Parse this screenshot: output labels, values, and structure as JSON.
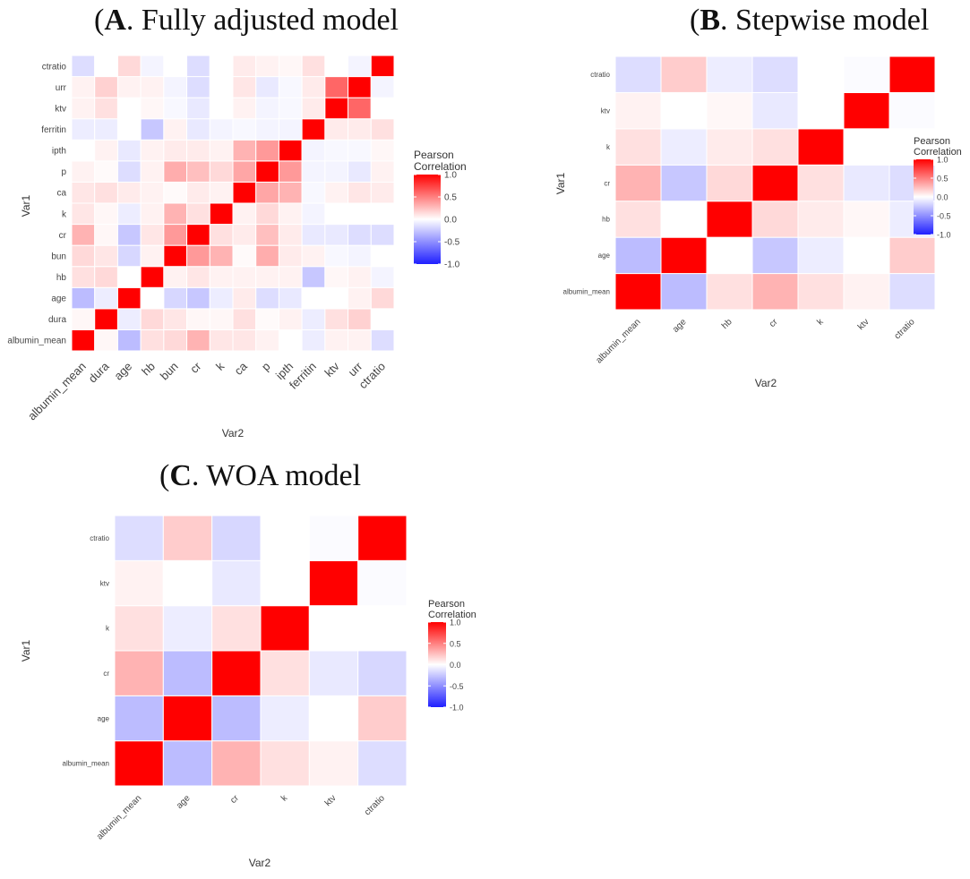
{
  "panels": {
    "A": {
      "letter": "A",
      "title": ". Fully adjusted model"
    },
    "B": {
      "letter": "B",
      "title": ". Stepwise model"
    },
    "C": {
      "letter": "C",
      "title": ". WOA model"
    }
  },
  "colors": {
    "low": "#1f1fff",
    "mid": "#ffffff",
    "high": "#ff0000",
    "border": "#ffffff",
    "panel_bg": "#ffffff"
  },
  "chart_data": [
    {
      "id": "A",
      "type": "heatmap",
      "title": "(A). Fully adjusted model",
      "xlabel": "Var2",
      "ylabel": "Var1",
      "legend": {
        "title_line1": "Pearson",
        "title_line2": "Correlation",
        "position": "right",
        "ticks": [
          "1.0",
          "0.5",
          "0.0",
          "-0.5",
          "-1.0"
        ],
        "range": [
          -1,
          1
        ]
      },
      "x": [
        "albumin_mean",
        "dura",
        "age",
        "hb",
        "bun",
        "cr",
        "k",
        "ca",
        "p",
        "ipth",
        "ferritin",
        "ktv",
        "urr",
        "ctratio"
      ],
      "y": [
        "albumin_mean",
        "dura",
        "age",
        "hb",
        "bun",
        "cr",
        "k",
        "ca",
        "p",
        "ipth",
        "ferritin",
        "ktv",
        "urr",
        "ctratio"
      ],
      "matrix": [
        [
          1.0,
          0.03,
          -0.3,
          0.12,
          0.15,
          0.3,
          0.1,
          0.1,
          0.05,
          0.0,
          -0.08,
          0.05,
          0.05,
          -0.15
        ],
        [
          0.03,
          1.0,
          -0.08,
          0.15,
          0.1,
          0.03,
          0.03,
          0.12,
          0.02,
          0.05,
          -0.08,
          0.12,
          0.18,
          0.0
        ],
        [
          -0.3,
          -0.08,
          1.0,
          0.0,
          -0.18,
          -0.25,
          -0.08,
          0.08,
          -0.15,
          -0.1,
          0.0,
          0.0,
          0.05,
          0.15
        ],
        [
          0.12,
          0.15,
          0.0,
          1.0,
          0.05,
          0.1,
          0.05,
          0.05,
          0.05,
          0.05,
          -0.25,
          0.03,
          0.05,
          -0.05
        ],
        [
          0.15,
          0.1,
          -0.18,
          0.05,
          1.0,
          0.4,
          0.3,
          0.02,
          0.32,
          0.08,
          0.05,
          -0.03,
          -0.05,
          0.0
        ],
        [
          0.3,
          0.03,
          -0.25,
          0.1,
          0.4,
          1.0,
          0.12,
          0.08,
          0.25,
          0.08,
          -0.1,
          -0.1,
          -0.15,
          -0.15
        ],
        [
          0.1,
          0.03,
          -0.08,
          0.05,
          0.3,
          0.12,
          1.0,
          0.05,
          0.15,
          0.05,
          -0.05,
          0.0,
          0.0,
          0.0
        ],
        [
          0.1,
          0.12,
          0.08,
          0.05,
          0.02,
          0.08,
          0.05,
          1.0,
          0.35,
          0.3,
          -0.03,
          0.05,
          0.1,
          0.08
        ],
        [
          0.05,
          0.02,
          -0.15,
          0.05,
          0.32,
          0.25,
          0.15,
          0.35,
          1.0,
          0.4,
          -0.05,
          -0.05,
          -0.1,
          0.05
        ],
        [
          0.0,
          0.05,
          -0.1,
          0.05,
          0.08,
          0.08,
          0.05,
          0.3,
          0.4,
          1.0,
          -0.05,
          -0.03,
          -0.03,
          0.03
        ],
        [
          -0.08,
          -0.08,
          0.0,
          -0.25,
          0.05,
          -0.1,
          -0.05,
          -0.03,
          -0.05,
          -0.05,
          1.0,
          0.08,
          0.08,
          0.12
        ],
        [
          0.05,
          0.12,
          0.0,
          0.03,
          -0.03,
          -0.1,
          0.0,
          0.05,
          -0.05,
          -0.03,
          0.08,
          1.0,
          0.6,
          0.0
        ],
        [
          0.05,
          0.18,
          0.05,
          0.05,
          -0.05,
          -0.15,
          0.0,
          0.1,
          -0.1,
          -0.03,
          0.08,
          0.6,
          1.0,
          -0.05
        ],
        [
          -0.15,
          0.0,
          0.15,
          -0.05,
          0.0,
          -0.15,
          0.0,
          0.08,
          0.05,
          0.03,
          0.12,
          0.0,
          -0.05,
          1.0
        ]
      ]
    },
    {
      "id": "B",
      "type": "heatmap",
      "title": "(B). Stepwise model",
      "xlabel": "Var2",
      "ylabel": "Var1",
      "legend": {
        "title_line1": "Pearson",
        "title_line2": "Correlation",
        "position": "right",
        "ticks": [
          "1.0",
          "0.5",
          "0.0",
          "-0.5",
          "-1.0"
        ],
        "range": [
          -1,
          1
        ]
      },
      "x": [
        "albumin_mean",
        "age",
        "hb",
        "cr",
        "k",
        "ktv",
        "ctratio"
      ],
      "y": [
        "albumin_mean",
        "age",
        "hb",
        "cr",
        "k",
        "ktv",
        "ctratio"
      ],
      "matrix": [
        [
          1.0,
          -0.3,
          0.12,
          0.3,
          0.12,
          0.05,
          -0.15
        ],
        [
          -0.3,
          1.0,
          0.0,
          -0.25,
          -0.08,
          0.0,
          0.2
        ],
        [
          0.12,
          0.0,
          1.0,
          0.15,
          0.08,
          0.03,
          -0.08
        ],
        [
          0.3,
          -0.25,
          0.15,
          1.0,
          0.12,
          -0.1,
          -0.15
        ],
        [
          0.12,
          -0.08,
          0.08,
          0.12,
          1.0,
          0.0,
          0.0
        ],
        [
          0.05,
          0.0,
          0.03,
          -0.1,
          0.0,
          1.0,
          -0.02
        ],
        [
          -0.15,
          0.2,
          -0.08,
          -0.15,
          0.0,
          -0.02,
          1.0
        ]
      ]
    },
    {
      "id": "C",
      "type": "heatmap",
      "title": "(C). WOA model",
      "xlabel": "Var2",
      "ylabel": "Var1",
      "legend": {
        "title_line1": "Pearson",
        "title_line2": "Correlation",
        "position": "right",
        "ticks": [
          "1.0",
          "0.5",
          "0.0",
          "-0.5",
          "-1.0"
        ],
        "range": [
          -1,
          1
        ]
      },
      "x": [
        "albumin_mean",
        "age",
        "cr",
        "k",
        "ktv",
        "ctratio"
      ],
      "y": [
        "albumin_mean",
        "age",
        "cr",
        "k",
        "ktv",
        "ctratio"
      ],
      "matrix": [
        [
          1.0,
          -0.3,
          0.3,
          0.12,
          0.05,
          -0.15
        ],
        [
          -0.3,
          1.0,
          -0.3,
          -0.08,
          0.0,
          0.2
        ],
        [
          0.3,
          -0.3,
          1.0,
          0.12,
          -0.1,
          -0.18
        ],
        [
          0.12,
          -0.08,
          0.12,
          1.0,
          0.0,
          0.0
        ],
        [
          0.05,
          0.0,
          -0.1,
          0.0,
          1.0,
          -0.02
        ],
        [
          -0.15,
          0.2,
          -0.18,
          0.0,
          -0.02,
          1.0
        ]
      ]
    }
  ]
}
